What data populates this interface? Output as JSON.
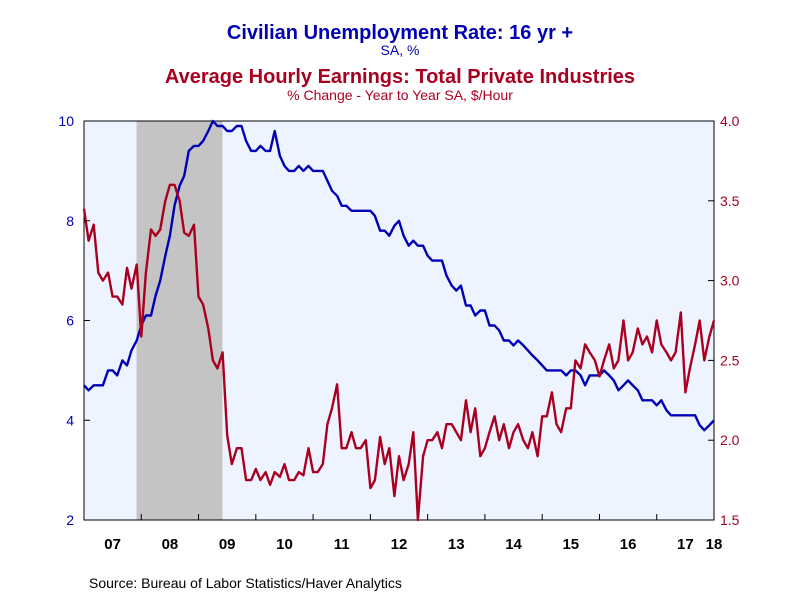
{
  "chart_data": {
    "type": "line",
    "title": "Civilian Unemployment Rate: 16 yr +",
    "title_subtitle": "SA, %",
    "title2": "Average Hourly Earnings: Total Private Industries",
    "title2_subtitle": "% Change - Year to Year     SA, $/Hour",
    "source": "Source:  Bureau of Labor Statistics/Haver Analytics",
    "colors": {
      "unemployment": "#0000b4",
      "earnings": "#aa0020",
      "plot_bg": "#eef4ff",
      "recession": "#c4c4c4",
      "edge": "#ffffff"
    },
    "x_tick_labels": [
      "07",
      "08",
      "09",
      "10",
      "11",
      "12",
      "13",
      "14",
      "15",
      "16",
      "17",
      "18"
    ],
    "x_range": [
      2007.0,
      2018.0
    ],
    "recession": [
      2007.917,
      2009.417
    ],
    "left_axis": {
      "ylim": [
        2,
        10
      ],
      "ticks": [
        "2",
        "4",
        "6",
        "8",
        "10"
      ]
    },
    "right_axis": {
      "ylim": [
        1.5,
        4.0
      ],
      "ticks": [
        "1.5",
        "2.0",
        "2.5",
        "3.0",
        "3.5",
        "4.0"
      ]
    },
    "series": [
      {
        "name": "Civilian Unemployment Rate: 16 yr +",
        "axis": "left",
        "x": [
          2007.0,
          2007.08,
          2007.17,
          2007.25,
          2007.33,
          2007.42,
          2007.5,
          2007.58,
          2007.67,
          2007.75,
          2007.83,
          2007.92,
          2008.0,
          2008.08,
          2008.17,
          2008.25,
          2008.33,
          2008.42,
          2008.5,
          2008.58,
          2008.67,
          2008.75,
          2008.83,
          2008.92,
          2009.0,
          2009.08,
          2009.17,
          2009.25,
          2009.33,
          2009.42,
          2009.5,
          2009.58,
          2009.67,
          2009.75,
          2009.83,
          2009.92,
          2010.0,
          2010.08,
          2010.17,
          2010.25,
          2010.33,
          2010.42,
          2010.5,
          2010.58,
          2010.67,
          2010.75,
          2010.83,
          2010.92,
          2011.0,
          2011.08,
          2011.17,
          2011.25,
          2011.33,
          2011.42,
          2011.5,
          2011.58,
          2011.67,
          2011.75,
          2011.83,
          2011.92,
          2012.0,
          2012.08,
          2012.17,
          2012.25,
          2012.33,
          2012.42,
          2012.5,
          2012.58,
          2012.67,
          2012.75,
          2012.83,
          2012.92,
          2013.0,
          2013.08,
          2013.17,
          2013.25,
          2013.33,
          2013.42,
          2013.5,
          2013.58,
          2013.67,
          2013.75,
          2013.83,
          2013.92,
          2014.0,
          2014.08,
          2014.17,
          2014.25,
          2014.33,
          2014.42,
          2014.5,
          2014.58,
          2014.67,
          2014.75,
          2014.83,
          2014.92,
          2015.0,
          2015.08,
          2015.17,
          2015.25,
          2015.33,
          2015.42,
          2015.5,
          2015.58,
          2015.67,
          2015.75,
          2015.83,
          2015.92,
          2016.0,
          2016.08,
          2016.17,
          2016.25,
          2016.33,
          2016.42,
          2016.5,
          2016.58,
          2016.67,
          2016.75,
          2016.83,
          2016.92,
          2017.0,
          2017.08,
          2017.17,
          2017.25,
          2017.33,
          2017.42,
          2017.5,
          2017.58,
          2017.67,
          2017.75,
          2017.83,
          2017.92,
          2018.0
        ],
        "values": [
          4.7,
          4.6,
          4.7,
          4.7,
          4.7,
          5.0,
          5.0,
          4.9,
          5.2,
          5.1,
          5.4,
          5.6,
          5.9,
          6.1,
          6.1,
          6.5,
          6.8,
          7.3,
          7.7,
          8.3,
          8.7,
          8.9,
          9.4,
          9.5,
          9.5,
          9.6,
          9.8,
          10.0,
          9.9,
          9.9,
          9.8,
          9.8,
          9.9,
          9.9,
          9.6,
          9.4,
          9.4,
          9.5,
          9.4,
          9.4,
          9.8,
          9.3,
          9.1,
          9.0,
          9.0,
          9.1,
          9.0,
          9.1,
          9.0,
          9.0,
          9.0,
          8.8,
          8.6,
          8.5,
          8.3,
          8.3,
          8.2,
          8.2,
          8.2,
          8.2,
          8.2,
          8.1,
          7.8,
          7.8,
          7.7,
          7.9,
          8.0,
          7.7,
          7.5,
          7.6,
          7.5,
          7.5,
          7.3,
          7.2,
          7.2,
          7.2,
          6.9,
          6.7,
          6.6,
          6.7,
          6.3,
          6.3,
          6.1,
          6.2,
          6.2,
          5.9,
          5.9,
          5.8,
          5.6,
          5.6,
          5.5,
          5.6,
          5.5,
          5.4,
          5.3,
          5.2,
          5.1,
          5.0,
          5.0,
          5.0,
          5.0,
          4.9,
          5.0,
          5.0,
          4.9,
          4.7,
          4.9,
          4.9,
          4.9,
          5.0,
          4.9,
          4.8,
          4.6,
          4.7,
          4.8,
          4.7,
          4.6,
          4.4,
          4.4,
          4.4,
          4.3,
          4.4,
          4.2,
          4.1,
          4.1,
          4.1,
          4.1,
          4.1,
          4.1,
          3.9,
          3.8,
          3.9,
          4.0
        ]
      },
      {
        "name": "Average Hourly Earnings: Total Private Industries",
        "axis": "right",
        "x": [
          2007.0,
          2007.08,
          2007.17,
          2007.25,
          2007.33,
          2007.42,
          2007.5,
          2007.58,
          2007.67,
          2007.75,
          2007.83,
          2007.92,
          2008.0,
          2008.08,
          2008.17,
          2008.25,
          2008.33,
          2008.42,
          2008.5,
          2008.58,
          2008.67,
          2008.75,
          2008.83,
          2008.92,
          2009.0,
          2009.08,
          2009.17,
          2009.25,
          2009.33,
          2009.42,
          2009.5,
          2009.58,
          2009.67,
          2009.75,
          2009.83,
          2009.92,
          2010.0,
          2010.08,
          2010.17,
          2010.25,
          2010.33,
          2010.42,
          2010.5,
          2010.58,
          2010.67,
          2010.75,
          2010.83,
          2010.92,
          2011.0,
          2011.08,
          2011.17,
          2011.25,
          2011.33,
          2011.42,
          2011.5,
          2011.58,
          2011.67,
          2011.75,
          2011.83,
          2011.92,
          2012.0,
          2012.08,
          2012.17,
          2012.25,
          2012.33,
          2012.42,
          2012.5,
          2012.58,
          2012.67,
          2012.75,
          2012.83,
          2012.92,
          2013.0,
          2013.08,
          2013.17,
          2013.25,
          2013.33,
          2013.42,
          2013.5,
          2013.58,
          2013.67,
          2013.75,
          2013.83,
          2013.92,
          2014.0,
          2014.08,
          2014.17,
          2014.25,
          2014.33,
          2014.42,
          2014.5,
          2014.58,
          2014.67,
          2014.75,
          2014.83,
          2014.92,
          2015.0,
          2015.08,
          2015.17,
          2015.25,
          2015.33,
          2015.42,
          2015.5,
          2015.58,
          2015.67,
          2015.75,
          2015.83,
          2015.92,
          2016.0,
          2016.08,
          2016.17,
          2016.25,
          2016.33,
          2016.42,
          2016.5,
          2016.58,
          2016.67,
          2016.75,
          2016.83,
          2016.92,
          2017.0,
          2017.08,
          2017.17,
          2017.25,
          2017.33,
          2017.42,
          2017.5,
          2017.58,
          2017.67,
          2017.75,
          2017.83,
          2017.92,
          2018.0
        ],
        "values": [
          3.45,
          3.25,
          3.35,
          3.05,
          3.0,
          3.05,
          2.9,
          2.9,
          2.85,
          3.08,
          2.95,
          3.1,
          2.65,
          3.05,
          3.32,
          3.28,
          3.32,
          3.5,
          3.6,
          3.6,
          3.5,
          3.3,
          3.28,
          3.35,
          2.9,
          2.85,
          2.7,
          2.5,
          2.45,
          2.55,
          2.03,
          1.85,
          1.95,
          1.95,
          1.75,
          1.75,
          1.82,
          1.75,
          1.8,
          1.72,
          1.8,
          1.77,
          1.85,
          1.75,
          1.75,
          1.8,
          1.78,
          1.95,
          1.8,
          1.8,
          1.85,
          2.1,
          2.2,
          2.35,
          1.95,
          1.95,
          2.05,
          1.95,
          1.95,
          2.0,
          1.7,
          1.75,
          2.02,
          1.85,
          1.95,
          1.65,
          1.9,
          1.75,
          1.85,
          2.05,
          1.5,
          1.9,
          2.0,
          2.0,
          2.05,
          1.95,
          2.1,
          2.1,
          2.05,
          2.0,
          2.25,
          2.05,
          2.2,
          1.9,
          1.95,
          2.05,
          2.15,
          2.0,
          2.1,
          1.95,
          2.05,
          2.1,
          2.0,
          1.95,
          2.05,
          1.9,
          2.15,
          2.15,
          2.3,
          2.1,
          2.05,
          2.2,
          2.2,
          2.5,
          2.45,
          2.6,
          2.55,
          2.5,
          2.4,
          2.5,
          2.6,
          2.45,
          2.5,
          2.75,
          2.5,
          2.55,
          2.7,
          2.6,
          2.65,
          2.55,
          2.75,
          2.6,
          2.55,
          2.5,
          2.55,
          2.8,
          2.3,
          2.45,
          2.6,
          2.75,
          2.5,
          2.65,
          2.75
        ]
      }
    ]
  }
}
